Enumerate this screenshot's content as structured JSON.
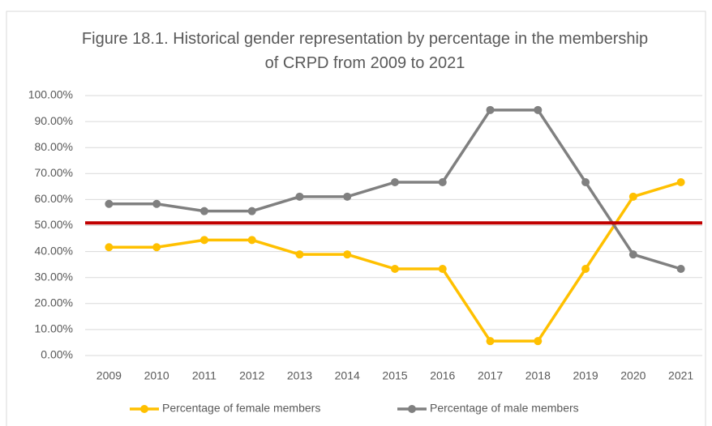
{
  "chart_data": {
    "type": "line",
    "title": "Figure 18.1. Historical gender representation by percentage in the membership of CRPD from 2009 to 2021",
    "categories": [
      "2009",
      "2010",
      "2011",
      "2012",
      "2013",
      "2014",
      "2015",
      "2016",
      "2017",
      "2018",
      "2019",
      "2020",
      "2021"
    ],
    "series": [
      {
        "name": "Percentage of female members",
        "color": "#ffc000",
        "values": [
          41.67,
          41.67,
          44.44,
          44.44,
          38.89,
          38.89,
          33.33,
          33.33,
          5.56,
          5.56,
          33.33,
          61.11,
          66.67
        ]
      },
      {
        "name": "Percentage of male members",
        "color": "#808080",
        "values": [
          58.33,
          58.33,
          55.56,
          55.56,
          61.11,
          61.11,
          66.67,
          66.67,
          94.44,
          94.44,
          66.67,
          38.89,
          33.33
        ]
      }
    ],
    "reference_line": {
      "value": 51,
      "color": "#c00000"
    },
    "ylim": [
      0,
      100
    ],
    "yticks": [
      {
        "value": 0,
        "label": "0.00%"
      },
      {
        "value": 10,
        "label": "10.00%"
      },
      {
        "value": 20,
        "label": "20.00%"
      },
      {
        "value": 30,
        "label": "30.00%"
      },
      {
        "value": 40,
        "label": "40.00%"
      },
      {
        "value": 50,
        "label": "50.00%"
      },
      {
        "value": 60,
        "label": "60.00%"
      },
      {
        "value": 70,
        "label": "70.00%"
      },
      {
        "value": 80,
        "label": "80.00%"
      },
      {
        "value": 90,
        "label": "90.00%"
      },
      {
        "value": 100,
        "label": "100.00%"
      }
    ],
    "grid": true,
    "legend": "bottom"
  }
}
